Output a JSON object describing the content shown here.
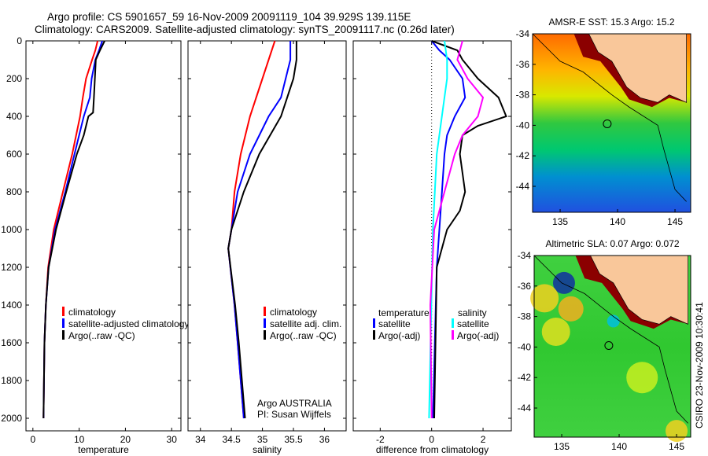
{
  "title_line1": "Argo profile: CS 5901657_59 16-Nov-2009 20091119_104 39.929S 139.115E",
  "title_line2": "Climatology: CARS2009. Satellite-adjusted climatology: synTS_20091117.nc (0.26d later)",
  "colors": {
    "climatology": "#ff0000",
    "satellite": "#0000ff",
    "argo": "#000000",
    "sal_satellite": "#00ffff",
    "sal_argo": "#ff00ff"
  },
  "chart_data": [
    {
      "type": "line",
      "xlabel": "temperature",
      "ylabel": "",
      "xlim": [
        -1.5,
        32
      ],
      "ylim": [
        2000,
        0
      ],
      "xticks": [
        "0",
        "10",
        "20",
        "30"
      ],
      "xtick_values": [
        0,
        10,
        20,
        30
      ],
      "yticks": [
        "0",
        "200",
        "400",
        "600",
        "800",
        "1000",
        "1200",
        "1400",
        "1600",
        "1800",
        "2000"
      ],
      "legend": [
        "climatology",
        "satellite-adjusted climatology",
        "Argo(..raw -QC)"
      ],
      "series": [
        {
          "name": "climatology",
          "color": "#ff0000",
          "depth": [
            0,
            50,
            100,
            200,
            300,
            400,
            600,
            800,
            1000,
            1200,
            1400,
            1600,
            2000
          ],
          "values": [
            14,
            13.5,
            12.8,
            11.5,
            10.8,
            10.2,
            8.5,
            6.5,
            4.5,
            3.3,
            2.8,
            2.5,
            2.3
          ]
        },
        {
          "name": "satellite-adjusted climatology",
          "color": "#0000ff",
          "depth": [
            0,
            50,
            100,
            200,
            300,
            400,
            600,
            800,
            1000,
            1200,
            1400,
            1600,
            2000
          ],
          "values": [
            15,
            14.3,
            13.5,
            12.7,
            12.3,
            11,
            9,
            7,
            4.8,
            3.4,
            2.8,
            2.5,
            2.3
          ]
        },
        {
          "name": "Argo(..raw -QC)",
          "color": "#000000",
          "depth": [
            0,
            50,
            100,
            200,
            300,
            380,
            400,
            500,
            600,
            800,
            1000,
            1200,
            1400,
            1600,
            2000
          ],
          "values": [
            15.5,
            14.5,
            13.6,
            13.4,
            13.2,
            13,
            12,
            11,
            9.5,
            7.2,
            5,
            3.4,
            2.8,
            2.5,
            2.3
          ]
        }
      ]
    },
    {
      "type": "line",
      "xlabel": "salinity",
      "xlim": [
        33.8,
        36.35
      ],
      "ylim": [
        2000,
        0
      ],
      "xticks": [
        "34",
        "34.5",
        "35",
        "35.5",
        "36"
      ],
      "xtick_values": [
        34,
        34.5,
        35,
        35.5,
        36
      ],
      "legend": [
        "climatology",
        "satellite adj. clim.",
        "Argo(..raw -QC)"
      ],
      "annotation": [
        "Argo AUSTRALIA",
        "PI: Susan Wijffels"
      ],
      "series": [
        {
          "name": "climatology",
          "color": "#ff0000",
          "depth": [
            0,
            100,
            200,
            300,
            400,
            600,
            800,
            1000,
            1100,
            1400,
            1600,
            2000
          ],
          "values": [
            35.2,
            35.1,
            35.0,
            34.9,
            34.8,
            34.65,
            34.55,
            34.5,
            34.45,
            34.55,
            34.6,
            34.7
          ]
        },
        {
          "name": "satellite adj. clim.",
          "color": "#0000ff",
          "depth": [
            0,
            100,
            300,
            400,
            600,
            800,
            1000,
            1100,
            1400,
            1600,
            2000
          ],
          "values": [
            35.45,
            35.45,
            35.3,
            35.1,
            34.8,
            34.6,
            34.5,
            34.45,
            34.55,
            34.6,
            34.7
          ]
        },
        {
          "name": "Argo(..raw -QC)",
          "color": "#000000",
          "depth": [
            0,
            100,
            200,
            300,
            400,
            600,
            800,
            1000,
            1100,
            1400,
            1600,
            2000
          ],
          "values": [
            35.55,
            35.55,
            35.5,
            35.4,
            35.3,
            34.95,
            34.7,
            34.5,
            34.45,
            34.56,
            34.62,
            34.72
          ]
        }
      ]
    },
    {
      "type": "line",
      "xlabel": "difference from climatology",
      "xlim": [
        -3.05,
        3.1
      ],
      "ylim": [
        2000,
        0
      ],
      "xticks": [
        "-2",
        "0",
        "2"
      ],
      "xtick_values": [
        -2,
        0,
        2
      ],
      "legend_headers": [
        "temperature",
        "salinity"
      ],
      "legend": [
        "satellite",
        "Argo(-adj)",
        "satellite",
        "Argo(-adj)"
      ],
      "series": [
        {
          "name": "temperature satellite",
          "color": "#0000ff",
          "depth": [
            0,
            50,
            100,
            200,
            300,
            400,
            500,
            600,
            800,
            1000,
            1200,
            2000
          ],
          "values": [
            0,
            0.3,
            0.7,
            1.2,
            1.3,
            0.9,
            0.6,
            0.5,
            0.4,
            0.3,
            0.2,
            0.05
          ]
        },
        {
          "name": "temperature Argo(-adj)",
          "color": "#000000",
          "depth": [
            0,
            50,
            100,
            200,
            300,
            400,
            450,
            500,
            600,
            800,
            900,
            1000,
            1200,
            2000
          ],
          "values": [
            0,
            1,
            1.2,
            1.8,
            2.6,
            2.9,
            1.8,
            1.2,
            1.1,
            1.3,
            1.1,
            0.6,
            0.2,
            0.1
          ]
        },
        {
          "name": "salinity satellite",
          "color": "#00ffff",
          "depth": [
            0,
            100,
            200,
            300,
            600,
            1000,
            2000
          ],
          "values": [
            0.5,
            0.6,
            0.6,
            0.5,
            0.2,
            0.05,
            -0.1
          ]
        },
        {
          "name": "salinity Argo(-adj)",
          "color": "#ff00ff",
          "depth": [
            0,
            100,
            200,
            300,
            400,
            500,
            600,
            800,
            1000,
            1400,
            2000
          ],
          "values": [
            1.2,
            1.0,
            1.4,
            2.0,
            1.8,
            1.2,
            0.9,
            0.5,
            0.1,
            -0.05,
            0.0
          ]
        }
      ]
    }
  ],
  "maps": [
    {
      "title": "AMSR-E SST: 15.3 Argo: 15.2",
      "yticks": [
        "-34",
        "-36",
        "-38",
        "-40",
        "-42",
        "-44"
      ],
      "xticks": [
        "135",
        "140",
        "145"
      ]
    },
    {
      "title": "Altimetric SLA: 0.07 Argo: 0.072",
      "yticks": [
        "-34",
        "-36",
        "-38",
        "-40",
        "-42",
        "-44"
      ],
      "xticks": [
        "135",
        "140",
        "145"
      ]
    }
  ],
  "side_label": "CSIRO 23-Nov-2009 10:30:41"
}
